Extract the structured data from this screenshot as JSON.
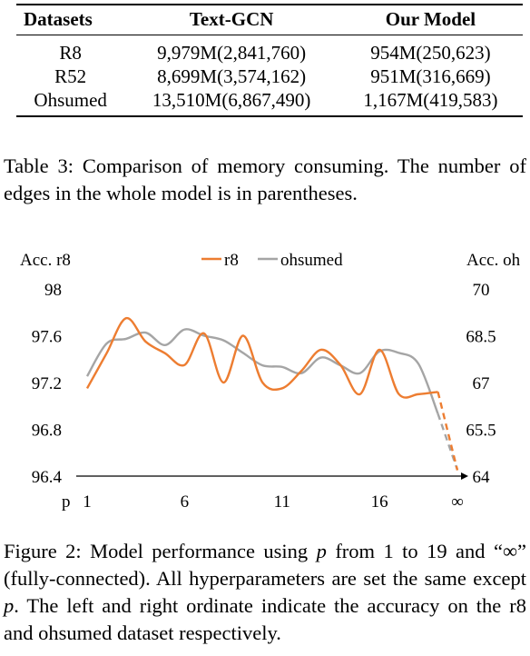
{
  "table": {
    "headers": [
      "Datasets",
      "Text-GCN",
      "Our Model"
    ],
    "rows": [
      [
        "R8",
        "9,979M(2,841,760)",
        "954M(250,623)"
      ],
      [
        "R52",
        "8,699M(3,574,162)",
        "951M(316,669)"
      ],
      [
        "Ohsumed",
        "13,510M(6,867,490)",
        "1,167M(419,583)"
      ]
    ],
    "caption": "Table 3:  Comparison of memory consuming.  The number of edges in the whole model is in parentheses."
  },
  "figure": {
    "caption_parts": [
      "Figure 2: Model performance using ",
      "p",
      " from 1 to 19 and “∞” (fully-connected). All hyperparameters are set the same except ",
      "p",
      ". The left and right ordinate indicate the accuracy on the r8 and ohsumed dataset respectively."
    ]
  },
  "chart_data": {
    "type": "line",
    "xlabel": "p",
    "x_ticks": [
      "1",
      "6",
      "11",
      "16",
      "∞"
    ],
    "x": [
      1,
      2,
      3,
      4,
      5,
      6,
      7,
      8,
      9,
      10,
      11,
      12,
      13,
      14,
      15,
      16,
      17,
      18,
      19,
      "∞"
    ],
    "ylabel_left": "Acc. r8",
    "ylabel_right": "Acc. oh",
    "ylim_left": [
      96.4,
      98
    ],
    "ylim_right": [
      64,
      70
    ],
    "yticks_left": [
      "98",
      "97.6",
      "97.2",
      "96.8",
      "96.4"
    ],
    "yticks_right": [
      "70",
      "68.5",
      "67",
      "65.5",
      "64"
    ],
    "legend_position": "top-center",
    "grid": false,
    "series": [
      {
        "name": "r8",
        "axis": "left",
        "color": "#ED7D31",
        "values": [
          97.15,
          97.45,
          97.75,
          97.55,
          97.45,
          97.35,
          97.62,
          97.2,
          97.6,
          97.2,
          97.15,
          97.3,
          97.48,
          97.35,
          97.1,
          97.48,
          97.1,
          97.1,
          97.12,
          96.45
        ],
        "dashed_last_segment": true
      },
      {
        "name": "ohsumed",
        "axis": "right",
        "color": "#A5A5A5",
        "values": [
          67.2,
          68.25,
          68.4,
          68.6,
          68.2,
          68.7,
          68.5,
          68.35,
          67.95,
          67.55,
          67.5,
          67.3,
          67.8,
          67.55,
          67.3,
          68.0,
          67.95,
          67.6,
          66.0,
          64.2
        ],
        "dashed_last_segment": true
      }
    ]
  }
}
